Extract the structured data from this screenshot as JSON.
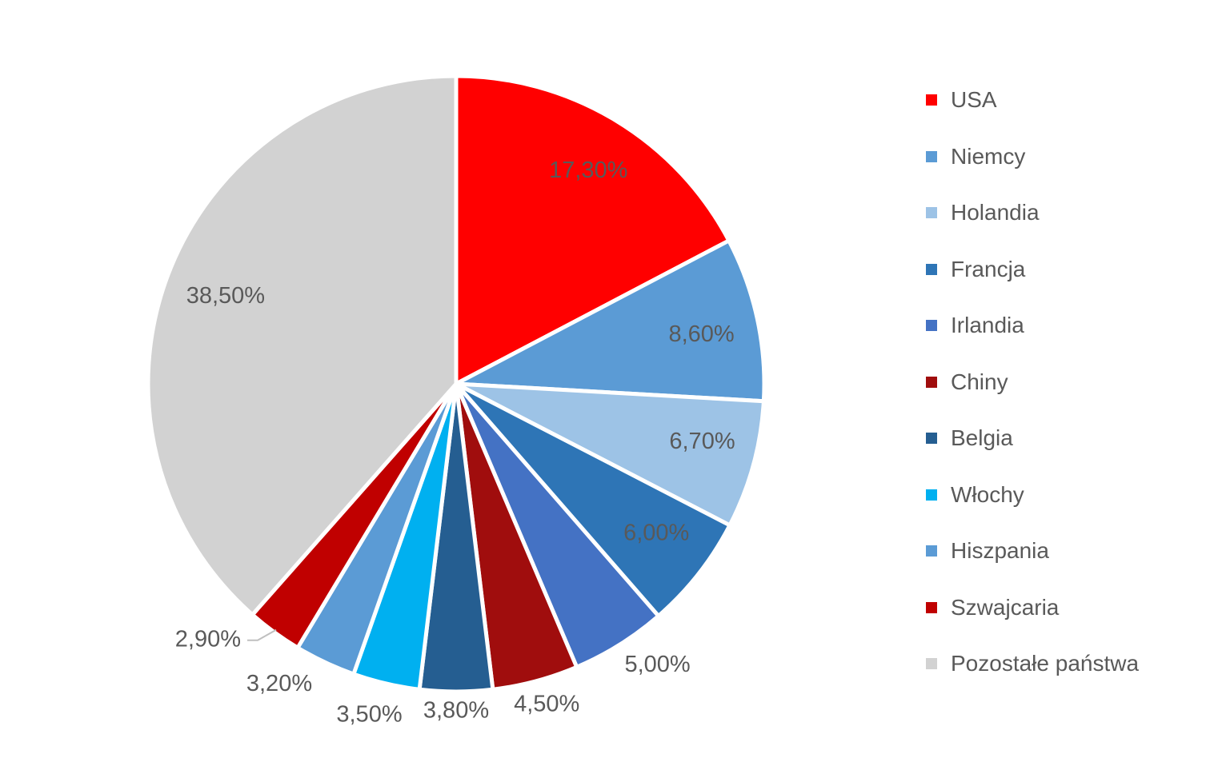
{
  "chart_data": {
    "type": "pie",
    "title": "",
    "start_angle_deg": 0,
    "direction": "clockwise",
    "legend_position": "right",
    "background_color": "#FFFFFF",
    "label_color": "#595959",
    "slice_border_color": "#FFFFFF",
    "leader_line_color": "#BFBFBF",
    "categories": [
      "USA",
      "Niemcy",
      "Holandia",
      "Francja",
      "Irlandia",
      "Chiny",
      "Belgia",
      "Włochy",
      "Hiszpania",
      "Szwajcaria",
      "Pozostałe państwa"
    ],
    "values": [
      17.3,
      8.6,
      6.7,
      6.0,
      5.0,
      4.5,
      3.8,
      3.5,
      3.2,
      2.9,
      38.5
    ],
    "labels": [
      "17,30%",
      "8,60%",
      "6,70%",
      "6,00%",
      "5,00%",
      "4,50%",
      "3,80%",
      "3,50%",
      "3,20%",
      "2,90%",
      "38,50%"
    ],
    "colors": [
      "#FF0000",
      "#5B9BD5",
      "#9DC3E6",
      "#2E75B6",
      "#4472C4",
      "#A00D0D",
      "#255E91",
      "#00B0F0",
      "#5B9BD5",
      "#C00000",
      "#D2D2D2"
    ],
    "label_placements": [
      "inside",
      "inside",
      "inside",
      "inside",
      "outside",
      "outside",
      "outside",
      "outside",
      "outside",
      "outside-leader",
      "inside"
    ]
  }
}
